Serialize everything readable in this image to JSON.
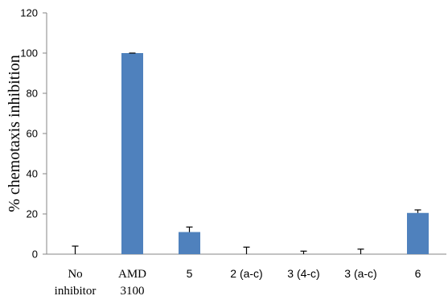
{
  "chart_data": {
    "type": "bar",
    "categories": [
      [
        "No",
        "inhibitor"
      ],
      [
        "AMD",
        "3100"
      ],
      [
        "5"
      ],
      [
        "2 (a-c)"
      ],
      [
        "3 (4-c)"
      ],
      [
        "3 (a-c)"
      ],
      [
        "6"
      ]
    ],
    "values": [
      0,
      100,
      11,
      0,
      0,
      0,
      20.5
    ],
    "error_upper": [
      4,
      0,
      2.5,
      3.5,
      1.5,
      2.5,
      1.5
    ],
    "title": "",
    "xlabel": "",
    "ylabel": "% chemotaxis inhibition",
    "ylim": [
      0,
      120
    ],
    "yticks": [
      "0",
      "20",
      "40",
      "60",
      "80",
      "100",
      "120"
    ],
    "grid": false,
    "legend": "none",
    "bar_color": "#4f81bd",
    "error_color": "#000000"
  }
}
